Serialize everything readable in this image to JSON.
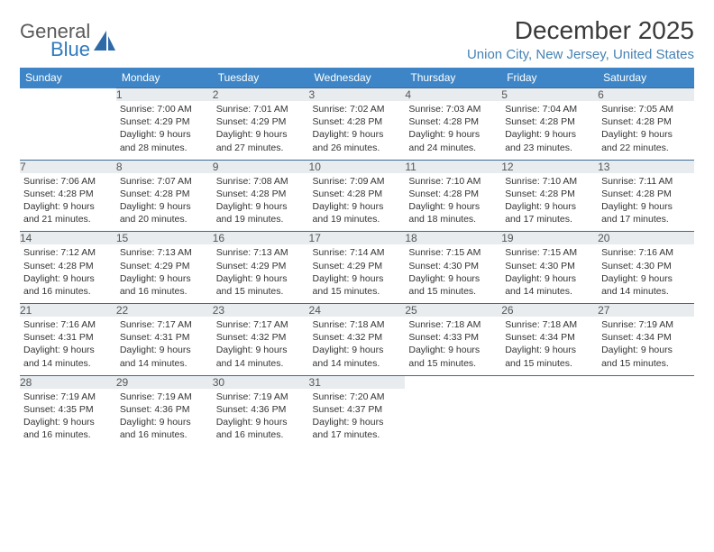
{
  "brand": {
    "word1": "General",
    "word2": "Blue",
    "color_general": "#5a5a5a",
    "color_blue": "#2f7bbf",
    "shape_color": "#2f6aa8"
  },
  "title": "December 2025",
  "location": "Union City, New Jersey, United States",
  "header_bg": "#3d85c6",
  "header_fg": "#ffffff",
  "daynum_bg": "#e8ecef",
  "row_border": "#3d6a94",
  "text_color": "#333333",
  "day_headers": [
    "Sunday",
    "Monday",
    "Tuesday",
    "Wednesday",
    "Thursday",
    "Friday",
    "Saturday"
  ],
  "weeks": [
    [
      {
        "n": "",
        "sr": "",
        "ss": "",
        "dl": ""
      },
      {
        "n": "1",
        "sr": "Sunrise: 7:00 AM",
        "ss": "Sunset: 4:29 PM",
        "dl": "Daylight: 9 hours and 28 minutes."
      },
      {
        "n": "2",
        "sr": "Sunrise: 7:01 AM",
        "ss": "Sunset: 4:29 PM",
        "dl": "Daylight: 9 hours and 27 minutes."
      },
      {
        "n": "3",
        "sr": "Sunrise: 7:02 AM",
        "ss": "Sunset: 4:28 PM",
        "dl": "Daylight: 9 hours and 26 minutes."
      },
      {
        "n": "4",
        "sr": "Sunrise: 7:03 AM",
        "ss": "Sunset: 4:28 PM",
        "dl": "Daylight: 9 hours and 24 minutes."
      },
      {
        "n": "5",
        "sr": "Sunrise: 7:04 AM",
        "ss": "Sunset: 4:28 PM",
        "dl": "Daylight: 9 hours and 23 minutes."
      },
      {
        "n": "6",
        "sr": "Sunrise: 7:05 AM",
        "ss": "Sunset: 4:28 PM",
        "dl": "Daylight: 9 hours and 22 minutes."
      }
    ],
    [
      {
        "n": "7",
        "sr": "Sunrise: 7:06 AM",
        "ss": "Sunset: 4:28 PM",
        "dl": "Daylight: 9 hours and 21 minutes."
      },
      {
        "n": "8",
        "sr": "Sunrise: 7:07 AM",
        "ss": "Sunset: 4:28 PM",
        "dl": "Daylight: 9 hours and 20 minutes."
      },
      {
        "n": "9",
        "sr": "Sunrise: 7:08 AM",
        "ss": "Sunset: 4:28 PM",
        "dl": "Daylight: 9 hours and 19 minutes."
      },
      {
        "n": "10",
        "sr": "Sunrise: 7:09 AM",
        "ss": "Sunset: 4:28 PM",
        "dl": "Daylight: 9 hours and 19 minutes."
      },
      {
        "n": "11",
        "sr": "Sunrise: 7:10 AM",
        "ss": "Sunset: 4:28 PM",
        "dl": "Daylight: 9 hours and 18 minutes."
      },
      {
        "n": "12",
        "sr": "Sunrise: 7:10 AM",
        "ss": "Sunset: 4:28 PM",
        "dl": "Daylight: 9 hours and 17 minutes."
      },
      {
        "n": "13",
        "sr": "Sunrise: 7:11 AM",
        "ss": "Sunset: 4:28 PM",
        "dl": "Daylight: 9 hours and 17 minutes."
      }
    ],
    [
      {
        "n": "14",
        "sr": "Sunrise: 7:12 AM",
        "ss": "Sunset: 4:28 PM",
        "dl": "Daylight: 9 hours and 16 minutes."
      },
      {
        "n": "15",
        "sr": "Sunrise: 7:13 AM",
        "ss": "Sunset: 4:29 PM",
        "dl": "Daylight: 9 hours and 16 minutes."
      },
      {
        "n": "16",
        "sr": "Sunrise: 7:13 AM",
        "ss": "Sunset: 4:29 PM",
        "dl": "Daylight: 9 hours and 15 minutes."
      },
      {
        "n": "17",
        "sr": "Sunrise: 7:14 AM",
        "ss": "Sunset: 4:29 PM",
        "dl": "Daylight: 9 hours and 15 minutes."
      },
      {
        "n": "18",
        "sr": "Sunrise: 7:15 AM",
        "ss": "Sunset: 4:30 PM",
        "dl": "Daylight: 9 hours and 15 minutes."
      },
      {
        "n": "19",
        "sr": "Sunrise: 7:15 AM",
        "ss": "Sunset: 4:30 PM",
        "dl": "Daylight: 9 hours and 14 minutes."
      },
      {
        "n": "20",
        "sr": "Sunrise: 7:16 AM",
        "ss": "Sunset: 4:30 PM",
        "dl": "Daylight: 9 hours and 14 minutes."
      }
    ],
    [
      {
        "n": "21",
        "sr": "Sunrise: 7:16 AM",
        "ss": "Sunset: 4:31 PM",
        "dl": "Daylight: 9 hours and 14 minutes."
      },
      {
        "n": "22",
        "sr": "Sunrise: 7:17 AM",
        "ss": "Sunset: 4:31 PM",
        "dl": "Daylight: 9 hours and 14 minutes."
      },
      {
        "n": "23",
        "sr": "Sunrise: 7:17 AM",
        "ss": "Sunset: 4:32 PM",
        "dl": "Daylight: 9 hours and 14 minutes."
      },
      {
        "n": "24",
        "sr": "Sunrise: 7:18 AM",
        "ss": "Sunset: 4:32 PM",
        "dl": "Daylight: 9 hours and 14 minutes."
      },
      {
        "n": "25",
        "sr": "Sunrise: 7:18 AM",
        "ss": "Sunset: 4:33 PM",
        "dl": "Daylight: 9 hours and 15 minutes."
      },
      {
        "n": "26",
        "sr": "Sunrise: 7:18 AM",
        "ss": "Sunset: 4:34 PM",
        "dl": "Daylight: 9 hours and 15 minutes."
      },
      {
        "n": "27",
        "sr": "Sunrise: 7:19 AM",
        "ss": "Sunset: 4:34 PM",
        "dl": "Daylight: 9 hours and 15 minutes."
      }
    ],
    [
      {
        "n": "28",
        "sr": "Sunrise: 7:19 AM",
        "ss": "Sunset: 4:35 PM",
        "dl": "Daylight: 9 hours and 16 minutes."
      },
      {
        "n": "29",
        "sr": "Sunrise: 7:19 AM",
        "ss": "Sunset: 4:36 PM",
        "dl": "Daylight: 9 hours and 16 minutes."
      },
      {
        "n": "30",
        "sr": "Sunrise: 7:19 AM",
        "ss": "Sunset: 4:36 PM",
        "dl": "Daylight: 9 hours and 16 minutes."
      },
      {
        "n": "31",
        "sr": "Sunrise: 7:20 AM",
        "ss": "Sunset: 4:37 PM",
        "dl": "Daylight: 9 hours and 17 minutes."
      },
      {
        "n": "",
        "sr": "",
        "ss": "",
        "dl": ""
      },
      {
        "n": "",
        "sr": "",
        "ss": "",
        "dl": ""
      },
      {
        "n": "",
        "sr": "",
        "ss": "",
        "dl": ""
      }
    ]
  ]
}
